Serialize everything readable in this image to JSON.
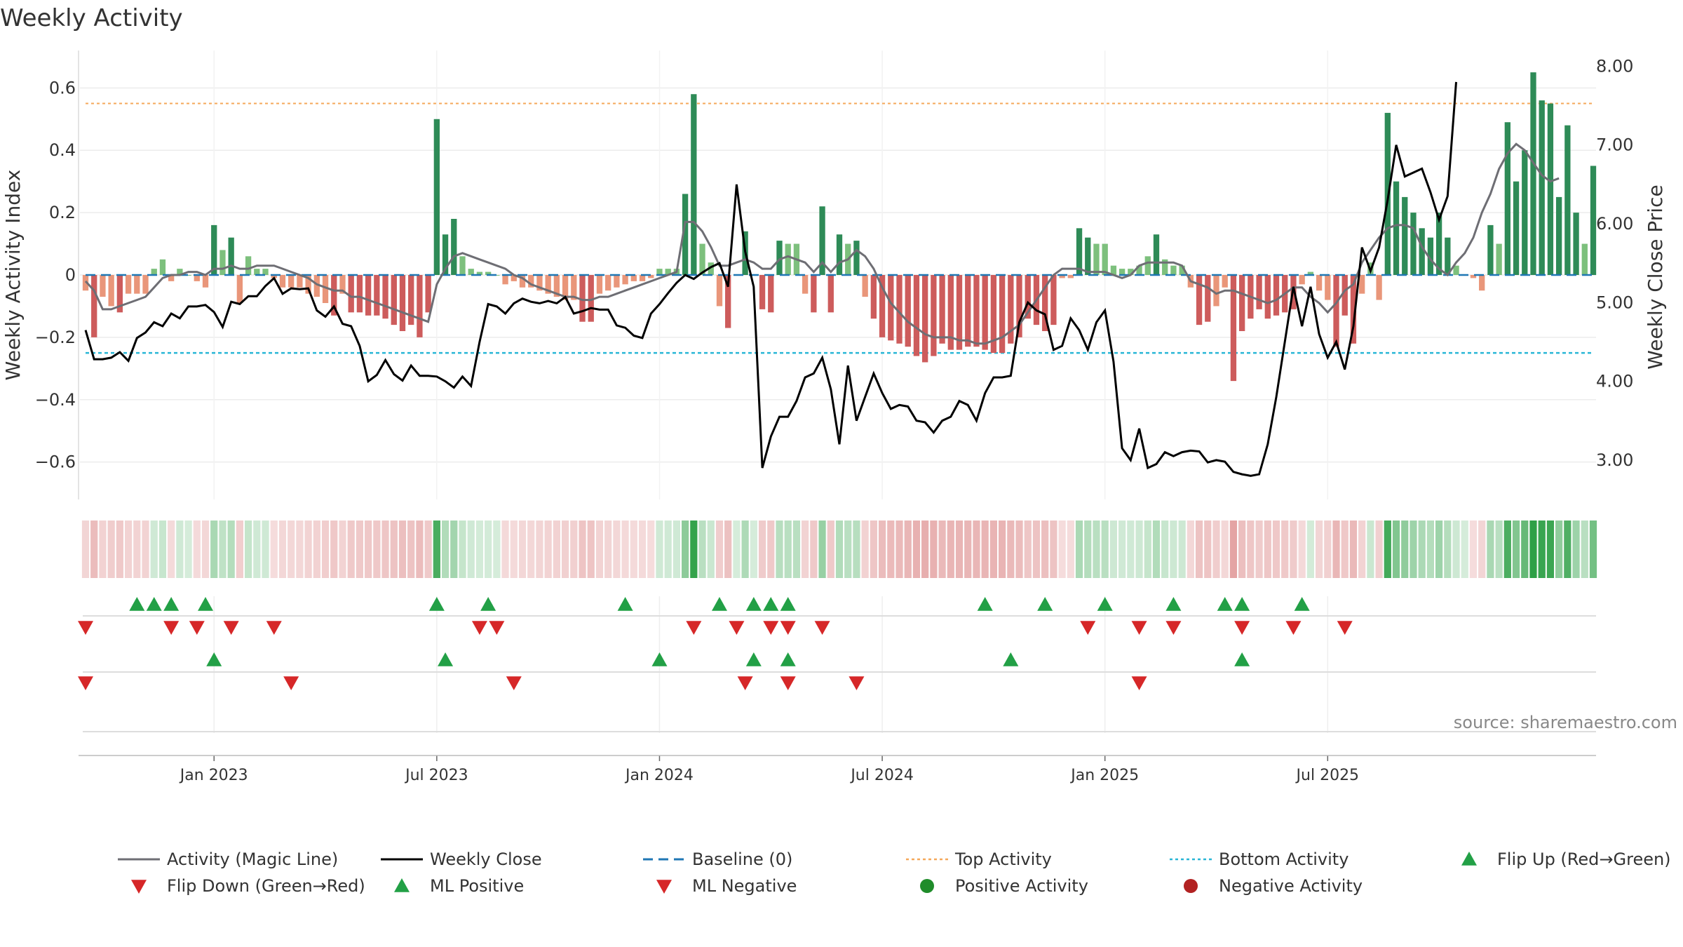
{
  "chart_data": {
    "type": "bar",
    "title": "Weekly Activity",
    "ylabel": "Weekly Activity Index",
    "y2label": "Weekly Close Price",
    "ylim": [
      -0.72,
      0.72
    ],
    "y2lim": [
      2.5,
      8.2
    ],
    "yticks": [
      0.6,
      0.4,
      0.2,
      0,
      -0.2,
      -0.4,
      -0.6
    ],
    "ytick_labels": [
      "0.6",
      "0.4",
      "0.2",
      "0",
      "−0.2",
      "−0.4",
      "−0.6"
    ],
    "y2ticks": [
      8,
      7,
      6,
      5,
      4,
      3
    ],
    "y2tick_labels": [
      "8.00",
      "7.00",
      "6.00",
      "5.00",
      "4.00",
      "3.00"
    ],
    "xticks": [
      {
        "week": 15,
        "label": "Jan 2023"
      },
      {
        "week": 41,
        "label": "Jul 2023"
      },
      {
        "week": 67,
        "label": "Jan 2024"
      },
      {
        "week": 93,
        "label": "Jul 2024"
      },
      {
        "week": 119,
        "label": "Jan 2025"
      },
      {
        "week": 145,
        "label": "Jul 2025"
      }
    ],
    "top_activity": 0.55,
    "bottom_activity": -0.25,
    "baseline": 0,
    "source": "source: sharemaestro.com",
    "activity": [
      -0.05,
      -0.2,
      -0.07,
      -0.1,
      -0.12,
      -0.06,
      -0.06,
      -0.06,
      0.02,
      0.05,
      -0.02,
      0.02,
      0.0,
      -0.02,
      -0.04,
      0.16,
      0.08,
      0.12,
      -0.09,
      0.06,
      0.02,
      0.02,
      -0.01,
      -0.04,
      -0.04,
      -0.04,
      -0.06,
      -0.07,
      -0.09,
      -0.13,
      -0.06,
      -0.12,
      -0.12,
      -0.13,
      -0.13,
      -0.14,
      -0.16,
      -0.18,
      -0.16,
      -0.2,
      -0.12,
      0.5,
      0.13,
      0.18,
      0.06,
      0.02,
      0.01,
      0.01,
      0.0,
      -0.03,
      -0.02,
      -0.04,
      -0.04,
      -0.05,
      -0.06,
      -0.07,
      -0.08,
      -0.08,
      -0.15,
      -0.15,
      -0.06,
      -0.05,
      -0.04,
      -0.03,
      -0.02,
      -0.02,
      -0.01,
      0.02,
      0.02,
      0.02,
      0.26,
      0.58,
      0.1,
      0.04,
      -0.1,
      -0.17,
      -0.0,
      0.14,
      -0.0,
      -0.11,
      -0.12,
      0.11,
      0.1,
      0.1,
      -0.06,
      -0.12,
      0.22,
      -0.12,
      0.13,
      0.1,
      0.11,
      -0.07,
      -0.14,
      -0.2,
      -0.21,
      -0.22,
      -0.23,
      -0.26,
      -0.28,
      -0.26,
      -0.22,
      -0.24,
      -0.24,
      -0.23,
      -0.23,
      -0.24,
      -0.25,
      -0.25,
      -0.22,
      -0.2,
      -0.14,
      -0.16,
      -0.18,
      -0.16,
      -0.01,
      -0.01,
      0.15,
      0.12,
      0.1,
      0.1,
      0.03,
      0.02,
      0.02,
      0.03,
      0.06,
      0.13,
      0.05,
      0.03,
      0.03,
      -0.04,
      -0.16,
      -0.15,
      -0.1,
      -0.04,
      -0.34,
      -0.18,
      -0.14,
      -0.11,
      -0.14,
      -0.13,
      -0.12,
      -0.11,
      -0.03,
      0.01,
      -0.05,
      -0.08,
      -0.23,
      -0.13,
      -0.22,
      -0.06,
      0.04,
      -0.08,
      0.52,
      0.3,
      0.25,
      0.2,
      0.15,
      0.12,
      0.2,
      0.12,
      0.03,
      0.0,
      -0.01,
      -0.05,
      0.16,
      0.1,
      0.49,
      0.3,
      0.4,
      0.65,
      0.56,
      0.55,
      0.25,
      0.48,
      0.2,
      0.1,
      0.35
    ],
    "magic_line": [
      -0.02,
      -0.05,
      -0.11,
      -0.11,
      -0.1,
      -0.09,
      -0.08,
      -0.07,
      -0.04,
      -0.01,
      0.0,
      0.0,
      0.01,
      0.01,
      0.0,
      0.02,
      0.02,
      0.03,
      0.02,
      0.02,
      0.03,
      0.03,
      0.03,
      0.02,
      0.01,
      0.0,
      -0.01,
      -0.03,
      -0.04,
      -0.05,
      -0.05,
      -0.07,
      -0.07,
      -0.08,
      -0.09,
      -0.1,
      -0.11,
      -0.12,
      -0.13,
      -0.14,
      -0.15,
      -0.03,
      0.02,
      0.06,
      0.07,
      0.06,
      0.05,
      0.04,
      0.03,
      0.02,
      0.0,
      -0.01,
      -0.03,
      -0.04,
      -0.05,
      -0.06,
      -0.07,
      -0.07,
      -0.08,
      -0.08,
      -0.07,
      -0.07,
      -0.06,
      -0.05,
      -0.04,
      -0.03,
      -0.02,
      -0.01,
      0.0,
      0.01,
      0.17,
      0.17,
      0.14,
      0.09,
      0.03,
      0.03,
      0.04,
      0.05,
      0.04,
      0.02,
      0.02,
      0.05,
      0.06,
      0.05,
      0.04,
      0.01,
      0.04,
      0.01,
      0.04,
      0.05,
      0.08,
      0.06,
      0.02,
      -0.04,
      -0.09,
      -0.12,
      -0.15,
      -0.17,
      -0.19,
      -0.2,
      -0.2,
      -0.2,
      -0.21,
      -0.21,
      -0.22,
      -0.22,
      -0.21,
      -0.2,
      -0.18,
      -0.16,
      -0.12,
      -0.08,
      -0.04,
      0.0,
      0.02,
      0.02,
      0.02,
      0.01,
      0.01,
      0.01,
      0.0,
      -0.01,
      0.0,
      0.03,
      0.04,
      0.04,
      0.04,
      0.04,
      0.03,
      -0.02,
      -0.03,
      -0.04,
      -0.06,
      -0.05,
      -0.05,
      -0.06,
      -0.07,
      -0.08,
      -0.09,
      -0.08,
      -0.06,
      -0.04,
      -0.04,
      -0.07,
      -0.09,
      -0.12,
      -0.09,
      -0.05,
      -0.03,
      0.04,
      0.08,
      0.12,
      0.15,
      0.16,
      0.16,
      0.15,
      0.09,
      0.05,
      0.02,
      0.0,
      0.04,
      0.07,
      0.12,
      0.2,
      0.26,
      0.34,
      0.39,
      0.42,
      0.4,
      0.36,
      0.32,
      0.3,
      0.31
    ],
    "close": [
      4.65,
      4.28,
      4.28,
      4.3,
      4.37,
      4.26,
      4.55,
      4.62,
      4.75,
      4.7,
      4.86,
      4.8,
      4.95,
      4.95,
      4.97,
      4.88,
      4.69,
      5.01,
      4.98,
      5.08,
      5.08,
      5.21,
      5.31,
      5.11,
      5.18,
      5.17,
      5.18,
      4.9,
      4.82,
      4.95,
      4.73,
      4.7,
      4.45,
      4.0,
      4.08,
      4.27,
      4.09,
      4.01,
      4.2,
      4.07,
      4.07,
      4.06,
      4.0,
      3.92,
      4.06,
      3.94,
      4.5,
      4.98,
      4.95,
      4.86,
      4.99,
      5.05,
      5.01,
      4.99,
      5.02,
      4.99,
      5.07,
      4.86,
      4.89,
      4.93,
      4.91,
      4.91,
      4.71,
      4.68,
      4.58,
      4.55,
      4.86,
      4.98,
      5.12,
      5.25,
      5.35,
      5.3,
      5.38,
      5.45,
      5.5,
      5.2,
      6.5,
      5.65,
      5.2,
      2.9,
      3.3,
      3.55,
      3.55,
      3.75,
      4.05,
      4.1,
      4.3,
      3.9,
      3.2,
      4.2,
      3.5,
      3.8,
      4.1,
      3.85,
      3.65,
      3.7,
      3.68,
      3.5,
      3.48,
      3.35,
      3.5,
      3.55,
      3.75,
      3.7,
      3.5,
      3.85,
      4.05,
      4.05,
      4.07,
      4.75,
      5.0,
      4.9,
      4.85,
      4.4,
      4.45,
      4.8,
      4.65,
      4.4,
      4.75,
      4.9,
      4.25,
      3.15,
      3.0,
      3.4,
      2.9,
      2.95,
      3.1,
      3.05,
      3.1,
      3.12,
      3.11,
      2.97,
      3.0,
      2.98,
      2.85,
      2.82,
      2.8,
      2.82,
      3.2,
      3.8,
      4.5,
      5.2,
      4.7,
      5.2,
      4.6,
      4.3,
      4.5,
      4.15,
      4.7,
      5.7,
      5.4,
      5.7,
      6.3,
      7.0,
      6.6,
      6.65,
      6.7,
      6.4,
      6.05,
      6.35,
      7.8
    ],
    "flip_up": [
      6,
      8,
      10,
      14,
      41,
      47,
      63,
      74,
      78,
      80,
      82,
      105,
      112,
      119,
      127,
      133,
      135,
      142
    ],
    "flip_down": [
      0,
      10,
      13,
      17,
      22,
      46,
      48,
      71,
      76,
      80,
      82,
      86,
      117,
      123,
      127,
      135,
      141,
      147
    ],
    "ml_positive": [
      15,
      42,
      67,
      78,
      82,
      108,
      135
    ],
    "ml_negative": [
      0,
      24,
      50,
      77,
      82,
      90,
      123
    ],
    "legend": [
      {
        "label": "Activity (Magic Line)",
        "kind": "line",
        "color": "#6e6e74"
      },
      {
        "label": "Weekly Close",
        "kind": "line",
        "color": "#000000"
      },
      {
        "label": "Baseline (0)",
        "kind": "dash",
        "color": "#1f77b4"
      },
      {
        "label": "Top Activity",
        "kind": "dot",
        "color": "#f5a85a"
      },
      {
        "label": "Bottom Activity",
        "kind": "dot",
        "color": "#29b6d6"
      },
      {
        "label": "Flip Up (Red→Green)",
        "kind": "tri-up",
        "color": "#22a046"
      },
      {
        "label": "Flip Down (Green→Red)",
        "kind": "tri-down",
        "color": "#d62728"
      },
      {
        "label": "ML Positive",
        "kind": "tri-up",
        "color": "#22a046"
      },
      {
        "label": "ML Negative",
        "kind": "tri-down",
        "color": "#d62728"
      },
      {
        "label": "Positive Activity",
        "kind": "circle",
        "color": "#1f8c2a"
      },
      {
        "label": "Negative Activity",
        "kind": "circle",
        "color": "#b22222"
      }
    ],
    "colors": {
      "pos_strong": "#2e8b57",
      "pos_light": "#7dc07d",
      "neg_strong": "#cd5c5c",
      "neg_light": "#e9967a",
      "up": "#22a046",
      "down": "#d62728"
    }
  }
}
